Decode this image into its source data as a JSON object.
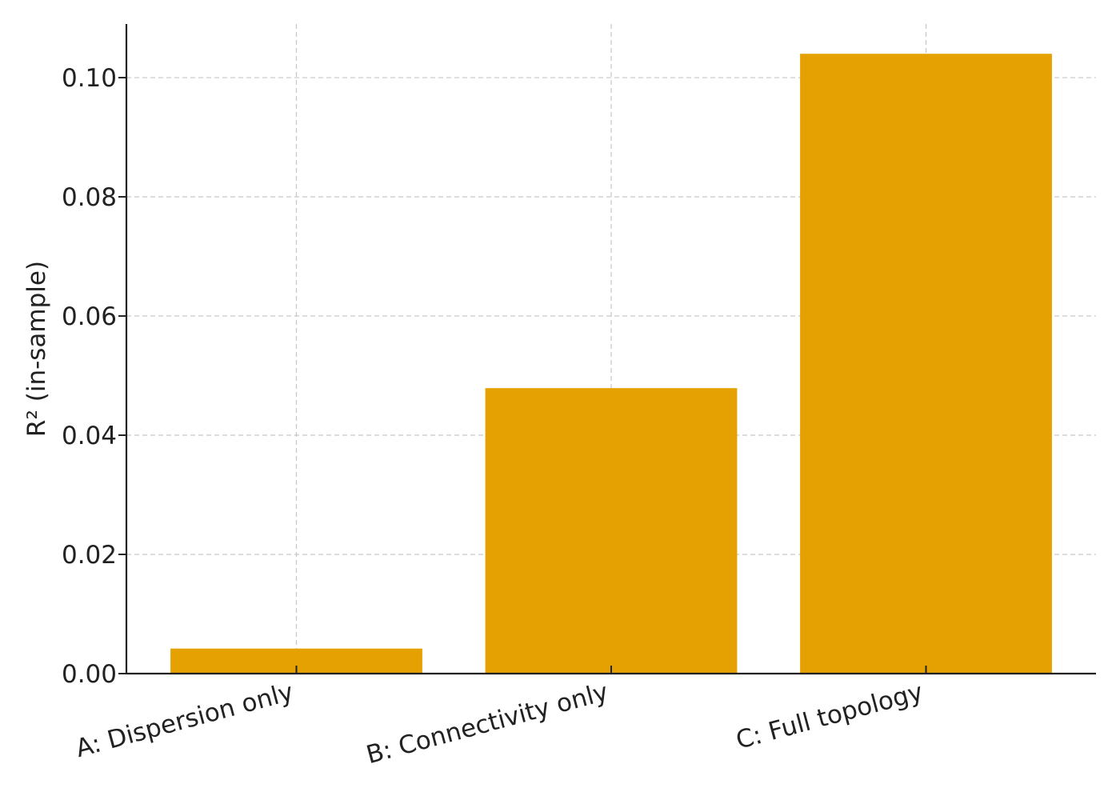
{
  "chart_data": {
    "type": "bar",
    "categories": [
      "A: Dispersion only",
      "B: Connectivity only",
      "C: Full topology"
    ],
    "values": [
      0.0042,
      0.0479,
      0.104
    ],
    "title": "",
    "xlabel": "",
    "ylabel": "R² (in-sample)",
    "ylim": [
      0,
      0.109
    ],
    "yticks": [
      0.0,
      0.02,
      0.04,
      0.06,
      0.08,
      0.1
    ],
    "ytick_labels": [
      "0.00",
      "0.02",
      "0.04",
      "0.06",
      "0.08",
      "0.10"
    ],
    "grid": true,
    "bar_color": "#E5A102"
  }
}
